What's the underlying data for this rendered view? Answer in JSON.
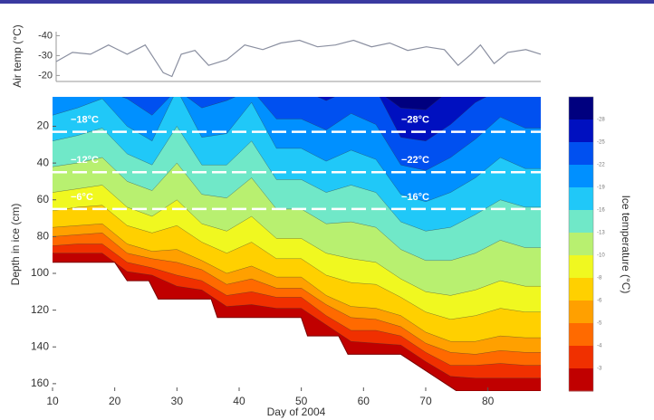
{
  "chart_data": [
    {
      "type": "line",
      "ylabel": "Air temp (°C)",
      "color": "#8a8fa0",
      "x": [
        10.6,
        13.2,
        16.1,
        19,
        22,
        24.9,
        27.8,
        29.2,
        30.7,
        32.9,
        35.1,
        38,
        40.9,
        43.8,
        46.7,
        49.7,
        52.6,
        55.5,
        58.4,
        61.3,
        64.2,
        67.1,
        70.1,
        73,
        75.2,
        77.3,
        78.8,
        81,
        83.2,
        86.1,
        88.5
      ],
      "values": [
        -27,
        -31.6,
        -30.7,
        -35.3,
        -30.7,
        -35.3,
        -21.4,
        -19.5,
        -30.7,
        -32.6,
        -25.1,
        -27.9,
        -35.3,
        -33,
        -36.3,
        -37.7,
        -34.4,
        -35.3,
        -37.7,
        -34.4,
        -36.3,
        -32.6,
        -34.4,
        -33,
        -25.1,
        -30.7,
        -35.3,
        -26,
        -31.6,
        -33,
        -30.7
      ],
      "xlim": [
        10,
        88.5
      ],
      "ylim": [
        -42,
        -17
      ],
      "yticks": [
        -40,
        -30,
        -20
      ],
      "inverted": true
    },
    {
      "type": "contour",
      "xlabel": "Day of 2004",
      "ylabel": "Depth in ice (cm)",
      "xlim": [
        10,
        88.5
      ],
      "xticks": [
        10,
        20,
        30,
        40,
        50,
        60,
        70,
        80
      ],
      "ylim": [
        4,
        164
      ],
      "yticks": [
        20,
        40,
        60,
        80,
        100,
        120,
        140,
        160
      ],
      "inverted": true,
      "x": [
        10,
        14,
        18,
        22,
        26,
        30,
        34,
        38,
        42,
        46,
        50,
        54,
        58,
        62,
        66,
        70,
        74,
        78,
        82,
        86,
        88.5
      ],
      "colors": [
        "#00007f",
        "#0010c0",
        "#0050f0",
        "#0090ff",
        "#20c8f8",
        "#70e8c8",
        "#b8f070",
        "#f0f820",
        "#ffd000",
        "#ffa000",
        "#ff6a00",
        "#f03000",
        "#c00000"
      ],
      "isotherms": [
        {
          "level": -28,
          "values": [
            0,
            0,
            0,
            0,
            0,
            0,
            0,
            0,
            0,
            0,
            0,
            0,
            0,
            0,
            10,
            11,
            0,
            0,
            0,
            0,
            0
          ]
        },
        {
          "level": -25,
          "values": [
            0,
            0,
            0,
            0,
            0,
            0,
            0,
            0,
            0,
            0,
            0,
            6,
            0,
            0,
            26,
            28,
            19,
            7,
            0,
            0,
            0
          ]
        },
        {
          "level": -22,
          "values": [
            0,
            0,
            0,
            5,
            14,
            0,
            10,
            6,
            0,
            16,
            16,
            22,
            13,
            19,
            41,
            44,
            37,
            27,
            15,
            21,
            21
          ]
        },
        {
          "level": -19,
          "values": [
            14,
            10,
            5,
            20,
            28,
            0,
            26,
            24,
            7,
            32,
            32,
            39,
            33,
            38,
            57,
            61,
            56,
            48,
            37,
            43,
            43
          ]
        },
        {
          "level": -16,
          "values": [
            28,
            25,
            21,
            35,
            41,
            20,
            41,
            41,
            28,
            49,
            49,
            56,
            52,
            56,
            72,
            77,
            75,
            68,
            60,
            64,
            64
          ]
        },
        {
          "level": -13,
          "values": [
            42,
            40,
            37,
            50,
            55,
            40,
            57,
            59,
            48,
            65,
            65,
            73,
            72,
            75,
            87,
            93,
            93,
            89,
            82,
            86,
            86
          ]
        },
        {
          "level": -10,
          "values": [
            56,
            54,
            52,
            64,
            69,
            60,
            73,
            77,
            69,
            81,
            81,
            89,
            92,
            94,
            103,
            110,
            112,
            109,
            104,
            107,
            107
          ]
        },
        {
          "level": -8,
          "values": [
            66,
            64,
            63,
            74,
            78,
            74,
            83,
            89,
            83,
            92,
            92,
            101,
            105,
            106,
            113,
            121,
            125,
            123,
            119,
            121,
            121
          ]
        },
        {
          "level": -6,
          "values": [
            75,
            74,
            73,
            84,
            88,
            87,
            93,
            100,
            96,
            102,
            102,
            112,
            118,
            119,
            123,
            132,
            137,
            137,
            134,
            135,
            135
          ]
        },
        {
          "level": -5,
          "values": [
            80,
            79,
            78,
            89,
            92,
            94,
            98,
            106,
            103,
            108,
            108,
            117,
            124,
            125,
            129,
            138,
            143,
            144,
            142,
            143,
            143
          ]
        },
        {
          "level": -4,
          "values": [
            85,
            84,
            84,
            94,
            97,
            101,
            104,
            112,
            110,
            113,
            113,
            123,
            131,
            131,
            134,
            143,
            150,
            150,
            149,
            150,
            150
          ]
        },
        {
          "level": -3,
          "values": [
            89,
            89,
            89,
            99,
            101,
            107,
            109,
            118,
            117,
            119,
            119,
            128,
            137,
            138,
            139,
            148,
            156,
            157,
            157,
            157,
            157
          ]
        }
      ],
      "ice_bottom": {
        "color": "#7a0000",
        "x": [
          10,
          20,
          22,
          25.5,
          27,
          35.5,
          36.5,
          50,
          51,
          56,
          57.5,
          66,
          75,
          88.5
        ],
        "values": [
          94,
          94,
          104,
          104,
          114,
          114,
          124,
          124,
          134,
          134,
          144,
          144,
          164,
          164
        ]
      },
      "reference_lines": [
        {
          "value": 23,
          "labels": [
            "−18°C",
            "−28°C"
          ]
        },
        {
          "value": 45,
          "labels": [
            "−12°C",
            "−22°C"
          ]
        },
        {
          "value": 65,
          "labels": [
            "−6°C",
            "−16°C"
          ]
        }
      ],
      "colorbar_label": "Ice temperature (°C)"
    }
  ]
}
